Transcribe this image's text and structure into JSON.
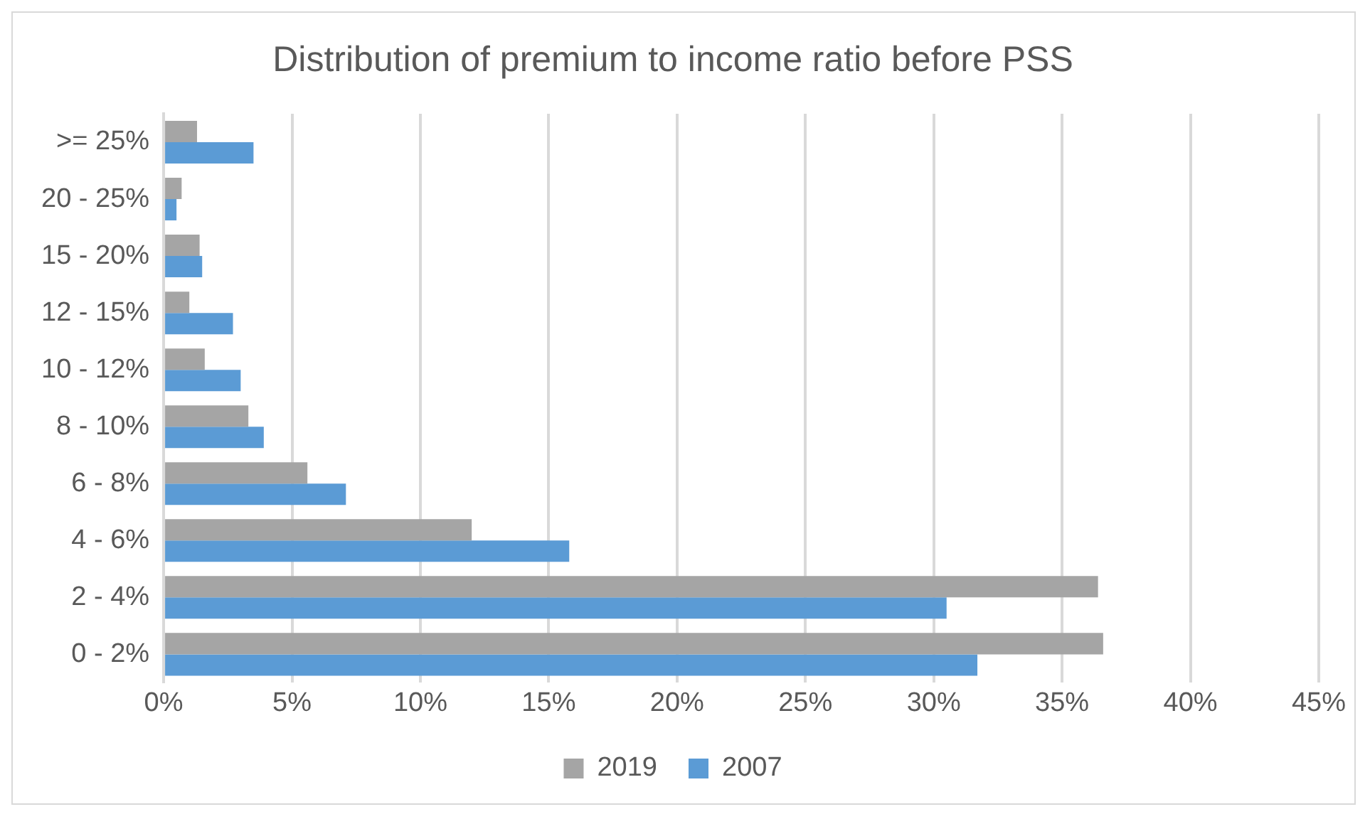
{
  "chart_data": {
    "type": "bar",
    "orientation": "horizontal",
    "title": "Distribution of premium to income ratio before PSS",
    "categories": [
      ">= 25%",
      "20 - 25%",
      "15 - 20%",
      "12 - 15%",
      "10 - 12%",
      "8 - 10%",
      "6 - 8%",
      "4 - 6%",
      "2 - 4%",
      "0 - 2%"
    ],
    "series": [
      {
        "name": "2019",
        "color": "#a5a5a5",
        "values": [
          1.3,
          0.7,
          1.4,
          1.0,
          1.6,
          3.3,
          5.6,
          12.0,
          36.4,
          36.6
        ]
      },
      {
        "name": "2007",
        "color": "#5b9bd5",
        "values": [
          3.5,
          0.5,
          1.5,
          2.7,
          3.0,
          3.9,
          7.1,
          15.8,
          30.5,
          31.7
        ]
      }
    ],
    "xlim": [
      0,
      45
    ],
    "xticks": [
      {
        "value": 0,
        "label": "0%"
      },
      {
        "value": 5,
        "label": "5%"
      },
      {
        "value": 10,
        "label": "10%"
      },
      {
        "value": 15,
        "label": "15%"
      },
      {
        "value": 20,
        "label": "20%"
      },
      {
        "value": 25,
        "label": "25%"
      },
      {
        "value": 30,
        "label": "30%"
      },
      {
        "value": 35,
        "label": "35%"
      },
      {
        "value": 40,
        "label": "40%"
      },
      {
        "value": 45,
        "label": "45%"
      }
    ],
    "grid": "x",
    "legend": "bottom"
  }
}
